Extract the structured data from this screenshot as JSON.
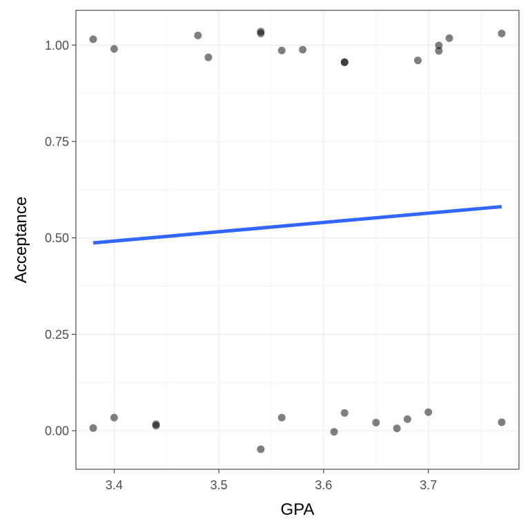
{
  "chart_data": {
    "type": "scatter",
    "xlabel": "GPA",
    "ylabel": "Acceptance",
    "xlim": [
      3.3635,
      3.7865
    ],
    "ylim": [
      -0.1,
      1.09
    ],
    "x_ticks": [
      3.4,
      3.5,
      3.6,
      3.7
    ],
    "x_tick_labels": [
      "3.4",
      "3.5",
      "3.6",
      "3.7"
    ],
    "y_ticks": [
      0,
      0.25,
      0.5,
      0.75,
      1
    ],
    "y_tick_labels": [
      "0.00",
      "0.25",
      "0.50",
      "0.75",
      "1.00"
    ],
    "grid": true,
    "points": [
      {
        "x": 3.38,
        "y": 1.015
      },
      {
        "x": 3.4,
        "y": 0.99
      },
      {
        "x": 3.48,
        "y": 1.025
      },
      {
        "x": 3.49,
        "y": 0.968
      },
      {
        "x": 3.54,
        "y": 1.035
      },
      {
        "x": 3.54,
        "y": 1.03
      },
      {
        "x": 3.56,
        "y": 0.986
      },
      {
        "x": 3.58,
        "y": 0.988
      },
      {
        "x": 3.62,
        "y": 0.955
      },
      {
        "x": 3.62,
        "y": 0.956
      },
      {
        "x": 3.69,
        "y": 0.96
      },
      {
        "x": 3.71,
        "y": 0.999
      },
      {
        "x": 3.71,
        "y": 0.985
      },
      {
        "x": 3.72,
        "y": 1.018
      },
      {
        "x": 3.77,
        "y": 1.03
      },
      {
        "x": 3.38,
        "y": 0.007
      },
      {
        "x": 3.4,
        "y": 0.034
      },
      {
        "x": 3.44,
        "y": 0.017
      },
      {
        "x": 3.44,
        "y": 0.013
      },
      {
        "x": 3.54,
        "y": -0.048
      },
      {
        "x": 3.56,
        "y": 0.034
      },
      {
        "x": 3.61,
        "y": -0.003
      },
      {
        "x": 3.62,
        "y": 0.046
      },
      {
        "x": 3.65,
        "y": 0.021
      },
      {
        "x": 3.67,
        "y": 0.006
      },
      {
        "x": 3.68,
        "y": 0.03
      },
      {
        "x": 3.7,
        "y": 0.048
      },
      {
        "x": 3.77,
        "y": 0.022
      }
    ],
    "trend_line": {
      "x": [
        3.38,
        3.77
      ],
      "y": [
        0.487,
        0.581
      ]
    },
    "point_color": "#000000",
    "point_opacity": 0.5,
    "line_color": "#3366FF"
  }
}
